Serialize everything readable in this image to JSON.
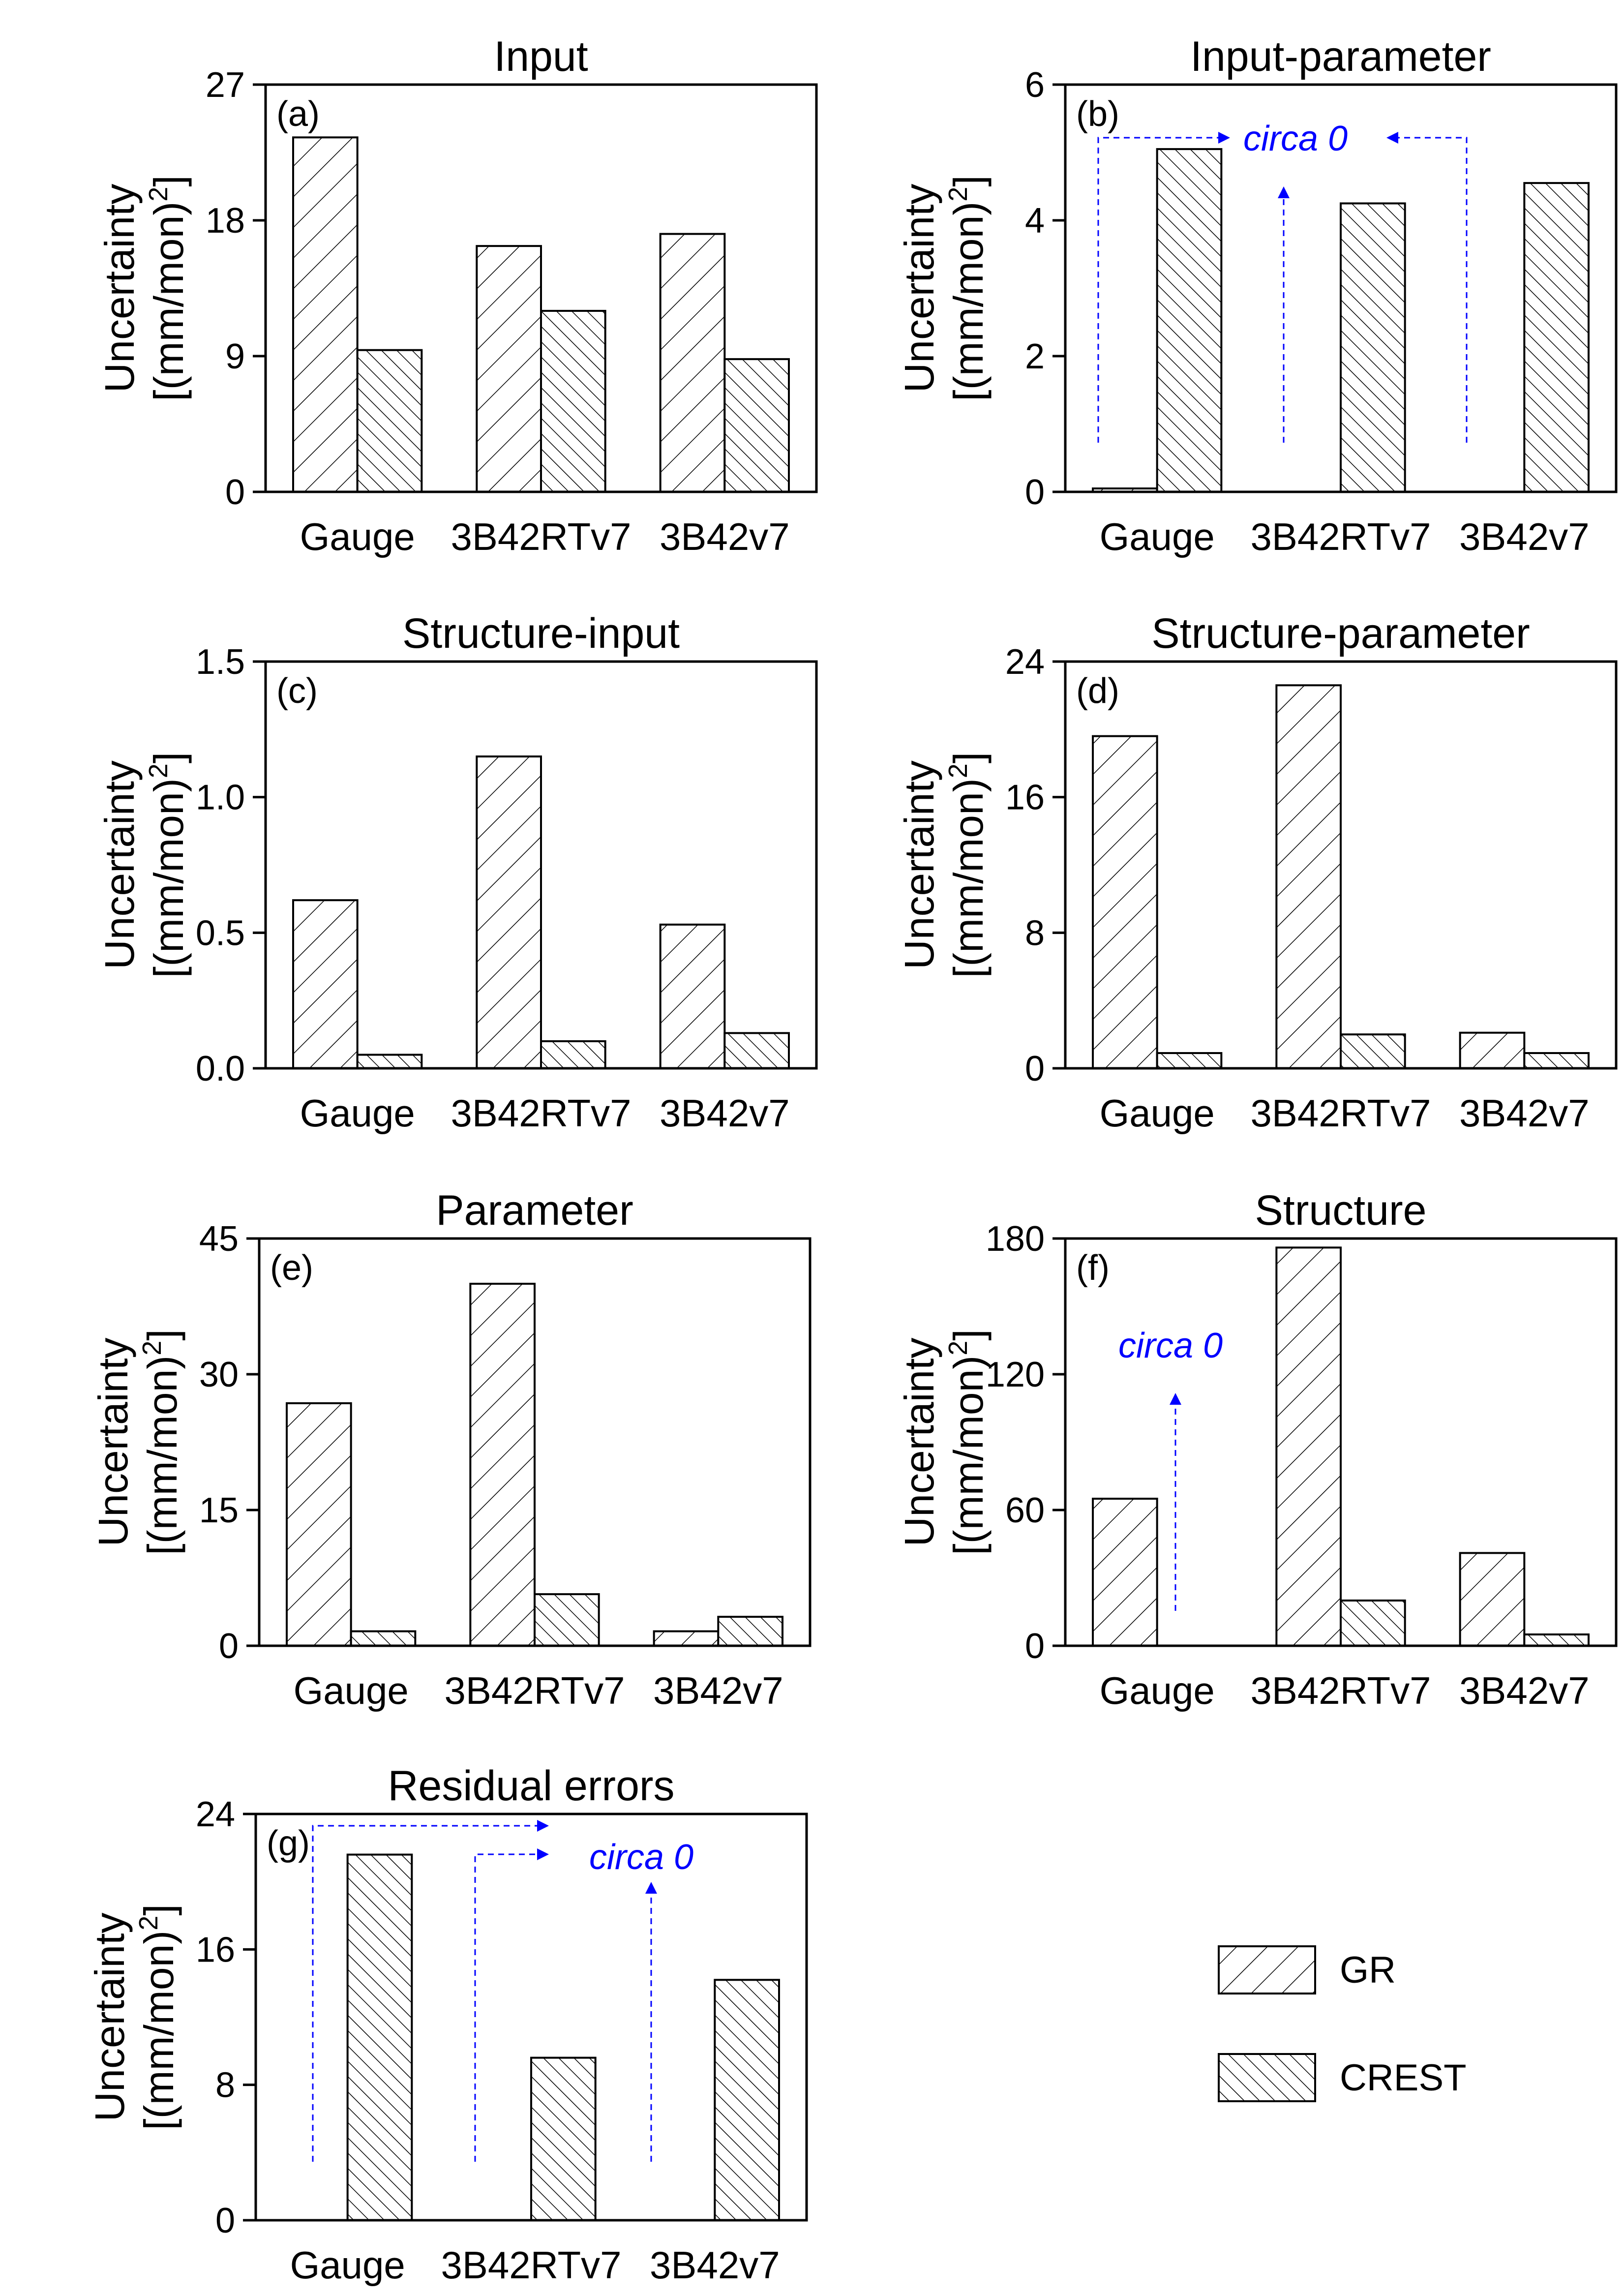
{
  "chart_data": [
    {
      "type": "bar",
      "panel": "(a)",
      "title": "Input",
      "ylabel": "Uncertainty",
      "ylabel_units": "[(mm/mon)",
      "ylabel_exp": "2",
      "ylabel_close": "]",
      "categories": [
        "Gauge",
        "3B42RTv7",
        "3B42v7"
      ],
      "series": [
        {
          "name": "GR",
          "values": [
            23.5,
            16.3,
            17.1
          ]
        },
        {
          "name": "CREST",
          "values": [
            9.4,
            12.0,
            8.8
          ]
        }
      ],
      "ylim": [
        0,
        27
      ],
      "yticks": [
        "0",
        "9",
        "18",
        "27"
      ],
      "notes": []
    },
    {
      "type": "bar",
      "panel": "(b)",
      "title": "Input-parameter",
      "ylabel": "Uncertainty",
      "ylabel_units": "[(mm/mon)",
      "ylabel_exp": "2",
      "ylabel_close": "]",
      "categories": [
        "Gauge",
        "3B42RTv7",
        "3B42v7"
      ],
      "series": [
        {
          "name": "GR",
          "values": [
            0.05,
            0,
            0
          ]
        },
        {
          "name": "CREST",
          "values": [
            5.05,
            4.25,
            4.55
          ]
        }
      ],
      "ylim": [
        0,
        6
      ],
      "yticks": [
        "0",
        "2",
        "4",
        "6"
      ],
      "notes": [
        "circa 0"
      ]
    },
    {
      "type": "bar",
      "panel": "(c)",
      "title": "Structure-input",
      "ylabel": "Uncertainty",
      "ylabel_units": "[(mm/mon)",
      "ylabel_exp": "2",
      "ylabel_close": "]",
      "categories": [
        "Gauge",
        "3B42RTv7",
        "3B42v7"
      ],
      "series": [
        {
          "name": "GR",
          "values": [
            0.62,
            1.15,
            0.53
          ]
        },
        {
          "name": "CREST",
          "values": [
            0.05,
            0.1,
            0.13
          ]
        }
      ],
      "ylim": [
        0,
        1.5
      ],
      "yticks": [
        "0.0",
        "0.5",
        "1.0",
        "1.5"
      ],
      "notes": []
    },
    {
      "type": "bar",
      "panel": "(d)",
      "title": "Structure-parameter",
      "ylabel": "Uncertainty",
      "ylabel_units": "[(mm/mon)",
      "ylabel_exp": "2",
      "ylabel_close": "]",
      "categories": [
        "Gauge",
        "3B42RTv7",
        "3B42v7"
      ],
      "series": [
        {
          "name": "GR",
          "values": [
            19.6,
            22.6,
            2.1
          ]
        },
        {
          "name": "CREST",
          "values": [
            0.9,
            2.0,
            0.9
          ]
        }
      ],
      "ylim": [
        0,
        24
      ],
      "yticks": [
        "0",
        "8",
        "16",
        "24"
      ],
      "notes": []
    },
    {
      "type": "bar",
      "panel": "(e)",
      "title": "Parameter",
      "ylabel": "Uncertainty",
      "ylabel_units": "[(mm/mon)",
      "ylabel_exp": "2",
      "ylabel_close": "]",
      "categories": [
        "Gauge",
        "3B42RTv7",
        "3B42v7"
      ],
      "series": [
        {
          "name": "GR",
          "values": [
            26.8,
            40.0,
            1.6
          ]
        },
        {
          "name": "CREST",
          "values": [
            1.6,
            5.7,
            3.2
          ]
        }
      ],
      "ylim": [
        0,
        45
      ],
      "yticks": [
        "0",
        "15",
        "30",
        "45"
      ],
      "notes": []
    },
    {
      "type": "bar",
      "panel": "(f)",
      "title": "Structure",
      "ylabel": "Uncertainty",
      "ylabel_units": "[(mm/mon)",
      "ylabel_exp": "2",
      "ylabel_close": "]",
      "categories": [
        "Gauge",
        "3B42RTv7",
        "3B42v7"
      ],
      "series": [
        {
          "name": "GR",
          "values": [
            65,
            176,
            41
          ]
        },
        {
          "name": "CREST",
          "values": [
            0,
            20,
            5
          ]
        }
      ],
      "ylim": [
        0,
        180
      ],
      "yticks": [
        "0",
        "60",
        "120",
        "180"
      ],
      "notes": [
        "circa 0"
      ]
    },
    {
      "type": "bar",
      "panel": "(g)",
      "title": "Residual errors",
      "ylabel": "Uncertainty",
      "ylabel_units": "[(mm/mon)",
      "ylabel_exp": "2",
      "ylabel_close": "]",
      "categories": [
        "Gauge",
        "3B42RTv7",
        "3B42v7"
      ],
      "series": [
        {
          "name": "GR",
          "values": [
            0,
            0,
            0
          ]
        },
        {
          "name": "CREST",
          "values": [
            21.6,
            9.6,
            14.2
          ]
        }
      ],
      "ylim": [
        0,
        24
      ],
      "yticks": [
        "0",
        "8",
        "16",
        "24"
      ],
      "notes": [
        "circa 0"
      ]
    }
  ],
  "legend": {
    "items": [
      {
        "name": "GR",
        "pattern": "diagonal-up"
      },
      {
        "name": "CREST",
        "pattern": "diagonal-down"
      }
    ]
  },
  "colors": {
    "axis": "#000000",
    "bar_fill": "#ffffff",
    "annotation": "#0000ff"
  }
}
